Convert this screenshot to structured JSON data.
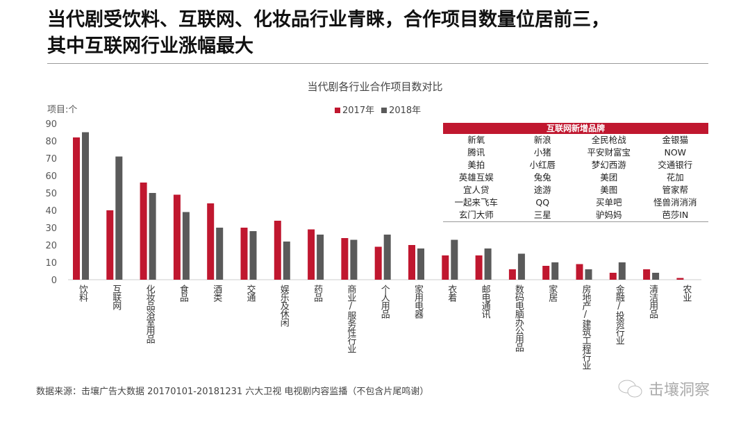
{
  "header": {
    "line1": "当代剧受饮料、互联网、化妆品行业青睐，合作项目数量位居前三，",
    "line2": "其中互联网行业涨幅最大"
  },
  "chart_data": {
    "type": "bar",
    "title": "当代剧各行业合作项目数对比",
    "ylabel": "项目:个",
    "ylim": [
      0,
      90
    ],
    "yticks": [
      0,
      10,
      20,
      30,
      40,
      50,
      60,
      70,
      80,
      90
    ],
    "grid": false,
    "legend_position": "top",
    "categories": [
      "饮料",
      "互联网",
      "化妆品浴室用品",
      "食品",
      "酒类",
      "交通",
      "娱乐及休闲",
      "药品",
      "商业/服务性行业",
      "个人用品",
      "家用电器",
      "衣着",
      "邮电通讯",
      "数码电脑办公用品",
      "家居",
      "房地产/建筑工程行业",
      "金融/投资行业",
      "清洁用品",
      "农业"
    ],
    "series": [
      {
        "name": "2017年",
        "color": "#c0172f",
        "values": [
          82,
          40,
          56,
          49,
          44,
          30,
          34,
          29,
          24,
          19,
          20,
          14,
          14,
          6,
          8,
          9,
          4,
          6,
          1
        ]
      },
      {
        "name": "2018年",
        "color": "#5a5a5a",
        "values": [
          85,
          71,
          50,
          39,
          30,
          28,
          22,
          26,
          23,
          26,
          18,
          23,
          18,
          15,
          10,
          6,
          10,
          4,
          0
        ]
      }
    ]
  },
  "table": {
    "title": "互联网新增品牌",
    "rows": [
      [
        "新氧",
        "新浪",
        "全民枪战",
        "金银猫"
      ],
      [
        "腾讯",
        "小猪",
        "平安财富宝",
        "NOW"
      ],
      [
        "美拍",
        "小红唇",
        "梦幻西游",
        "交通银行"
      ],
      [
        "英雄互娱",
        "兔兔",
        "美团",
        "花加"
      ],
      [
        "宜人贷",
        "途游",
        "美图",
        "管家帮"
      ],
      [
        "一起来飞车",
        "QQ",
        "买单吧",
        "怪兽消消消"
      ],
      [
        "玄门大师",
        "三星",
        "驴妈妈",
        "芭莎IN"
      ]
    ]
  },
  "footer": {
    "source": "数据来源：击壤广告大数据 20170101-20181231 六大卫视 电视剧内容监播（不包含片尾鸣谢）",
    "logo": "击壤洞察",
    "logo_icon": "wechat-icon"
  }
}
